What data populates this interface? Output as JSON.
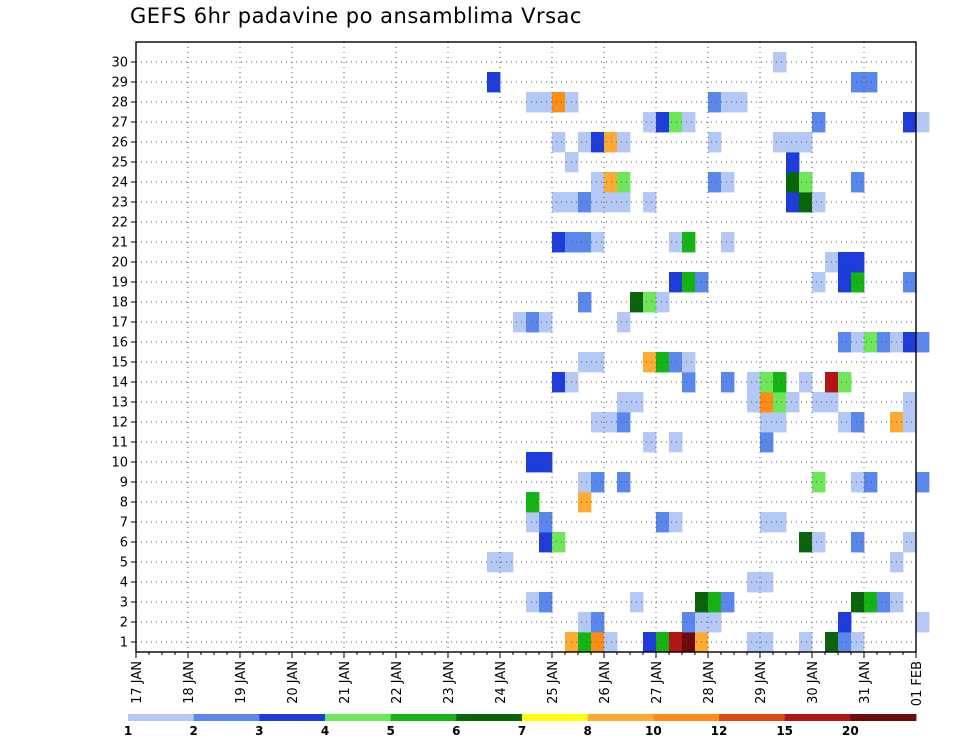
{
  "chart_data": {
    "type": "heatmap",
    "title": "GEFS 6hr padavine po ansamblima Vrsac",
    "members": [
      1,
      2,
      3,
      4,
      5,
      6,
      7,
      8,
      9,
      10,
      11,
      12,
      13,
      14,
      15,
      16,
      17,
      18,
      19,
      20,
      21,
      22,
      23,
      24,
      25,
      26,
      27,
      28,
      29,
      30
    ],
    "x_ticks": [
      "17 JAN",
      "18 JAN",
      "19 JAN",
      "20 JAN",
      "21 JAN",
      "22 JAN",
      "23 JAN",
      "24 JAN",
      "25 JAN",
      "26 JAN",
      "27 JAN",
      "28 JAN",
      "29 JAN",
      "30 JAN",
      "31 JAN",
      "01 FEB"
    ],
    "x_steps_per_day": 4,
    "grid": true,
    "legend": {
      "placement": "bottom",
      "labels": [
        "1",
        "2",
        "3",
        "4",
        "5",
        "6",
        "7",
        "8",
        "10",
        "12",
        "15",
        "20"
      ],
      "colors": [
        "#b4c8f5",
        "#5a87eb",
        "#1e3cdc",
        "#6ee65a",
        "#14b414",
        "#0a640a",
        "#ffff00",
        "#ffaa32",
        "#ff8c14",
        "#e14614",
        "#b41414",
        "#6e0a0a"
      ]
    },
    "cells": [
      {
        "m": 1,
        "t": 33,
        "v": 9
      },
      {
        "m": 1,
        "t": 34,
        "v": 5
      },
      {
        "m": 1,
        "t": 35,
        "v": 10
      },
      {
        "m": 1,
        "t": 36,
        "v": 1
      },
      {
        "m": 1,
        "t": 39,
        "v": 3
      },
      {
        "m": 1,
        "t": 40,
        "v": 5
      },
      {
        "m": 1,
        "t": 41,
        "v": 15
      },
      {
        "m": 1,
        "t": 42,
        "v": 20
      },
      {
        "m": 1,
        "t": 43,
        "v": 8
      },
      {
        "m": 1,
        "t": 47,
        "v": 1
      },
      {
        "m": 1,
        "t": 48,
        "v": 1
      },
      {
        "m": 1,
        "t": 51,
        "v": 1
      },
      {
        "m": 1,
        "t": 53,
        "v": 6
      },
      {
        "m": 1,
        "t": 54,
        "v": 2
      },
      {
        "m": 1,
        "t": 55,
        "v": 1
      },
      {
        "m": 2,
        "t": 34,
        "v": 1
      },
      {
        "m": 2,
        "t": 35,
        "v": 2
      },
      {
        "m": 2,
        "t": 42,
        "v": 2
      },
      {
        "m": 2,
        "t": 43,
        "v": 1
      },
      {
        "m": 2,
        "t": 44,
        "v": 1
      },
      {
        "m": 2,
        "t": 54,
        "v": 3
      },
      {
        "m": 2,
        "t": 60,
        "v": 1
      },
      {
        "m": 3,
        "t": 30,
        "v": 1
      },
      {
        "m": 3,
        "t": 31,
        "v": 2
      },
      {
        "m": 3,
        "t": 38,
        "v": 1
      },
      {
        "m": 3,
        "t": 43,
        "v": 6
      },
      {
        "m": 3,
        "t": 44,
        "v": 5
      },
      {
        "m": 3,
        "t": 45,
        "v": 2
      },
      {
        "m": 3,
        "t": 55,
        "v": 6
      },
      {
        "m": 3,
        "t": 56,
        "v": 5
      },
      {
        "m": 3,
        "t": 57,
        "v": 2
      },
      {
        "m": 3,
        "t": 58,
        "v": 1
      },
      {
        "m": 4,
        "t": 47,
        "v": 1
      },
      {
        "m": 4,
        "t": 48,
        "v": 1
      },
      {
        "m": 5,
        "t": 27,
        "v": 1
      },
      {
        "m": 5,
        "t": 28,
        "v": 1
      },
      {
        "m": 5,
        "t": 58,
        "v": 1
      },
      {
        "m": 6,
        "t": 31,
        "v": 3
      },
      {
        "m": 6,
        "t": 32,
        "v": 4
      },
      {
        "m": 6,
        "t": 51,
        "v": 6
      },
      {
        "m": 6,
        "t": 52,
        "v": 1
      },
      {
        "m": 6,
        "t": 55,
        "v": 2
      },
      {
        "m": 6,
        "t": 59,
        "v": 1
      },
      {
        "m": 7,
        "t": 30,
        "v": 1
      },
      {
        "m": 7,
        "t": 31,
        "v": 2
      },
      {
        "m": 7,
        "t": 40,
        "v": 2
      },
      {
        "m": 7,
        "t": 41,
        "v": 1
      },
      {
        "m": 7,
        "t": 48,
        "v": 1
      },
      {
        "m": 7,
        "t": 49,
        "v": 1
      },
      {
        "m": 8,
        "t": 30,
        "v": 5
      },
      {
        "m": 8,
        "t": 34,
        "v": 8
      },
      {
        "m": 9,
        "t": 34,
        "v": 1
      },
      {
        "m": 9,
        "t": 35,
        "v": 2
      },
      {
        "m": 9,
        "t": 37,
        "v": 2
      },
      {
        "m": 9,
        "t": 52,
        "v": 4
      },
      {
        "m": 9,
        "t": 55,
        "v": 1
      },
      {
        "m": 9,
        "t": 56,
        "v": 2
      },
      {
        "m": 9,
        "t": 60,
        "v": 2
      },
      {
        "m": 10,
        "t": 30,
        "v": 3
      },
      {
        "m": 10,
        "t": 31,
        "v": 3
      },
      {
        "m": 11,
        "t": 39,
        "v": 1
      },
      {
        "m": 11,
        "t": 41,
        "v": 1
      },
      {
        "m": 11,
        "t": 48,
        "v": 2
      },
      {
        "m": 12,
        "t": 35,
        "v": 1
      },
      {
        "m": 12,
        "t": 36,
        "v": 1
      },
      {
        "m": 12,
        "t": 37,
        "v": 2
      },
      {
        "m": 12,
        "t": 48,
        "v": 1
      },
      {
        "m": 12,
        "t": 49,
        "v": 1
      },
      {
        "m": 12,
        "t": 54,
        "v": 1
      },
      {
        "m": 12,
        "t": 55,
        "v": 2
      },
      {
        "m": 12,
        "t": 58,
        "v": 8
      },
      {
        "m": 12,
        "t": 59,
        "v": 1
      },
      {
        "m": 13,
        "t": 37,
        "v": 1
      },
      {
        "m": 13,
        "t": 38,
        "v": 1
      },
      {
        "m": 13,
        "t": 47,
        "v": 1
      },
      {
        "m": 13,
        "t": 48,
        "v": 10
      },
      {
        "m": 13,
        "t": 49,
        "v": 4
      },
      {
        "m": 13,
        "t": 50,
        "v": 1
      },
      {
        "m": 13,
        "t": 52,
        "v": 1
      },
      {
        "m": 13,
        "t": 53,
        "v": 1
      },
      {
        "m": 13,
        "t": 59,
        "v": 1
      },
      {
        "m": 14,
        "t": 32,
        "v": 3
      },
      {
        "m": 14,
        "t": 33,
        "v": 1
      },
      {
        "m": 14,
        "t": 42,
        "v": 2
      },
      {
        "m": 14,
        "t": 45,
        "v": 2
      },
      {
        "m": 14,
        "t": 47,
        "v": 1
      },
      {
        "m": 14,
        "t": 48,
        "v": 4
      },
      {
        "m": 14,
        "t": 49,
        "v": 5
      },
      {
        "m": 14,
        "t": 51,
        "v": 1
      },
      {
        "m": 14,
        "t": 53,
        "v": 15
      },
      {
        "m": 14,
        "t": 54,
        "v": 4
      },
      {
        "m": 15,
        "t": 34,
        "v": 1
      },
      {
        "m": 15,
        "t": 35,
        "v": 1
      },
      {
        "m": 15,
        "t": 39,
        "v": 8
      },
      {
        "m": 15,
        "t": 40,
        "v": 5
      },
      {
        "m": 15,
        "t": 41,
        "v": 2
      },
      {
        "m": 15,
        "t": 42,
        "v": 1
      },
      {
        "m": 16,
        "t": 54,
        "v": 2
      },
      {
        "m": 16,
        "t": 55,
        "v": 1
      },
      {
        "m": 16,
        "t": 56,
        "v": 4
      },
      {
        "m": 16,
        "t": 57,
        "v": 2
      },
      {
        "m": 16,
        "t": 58,
        "v": 1
      },
      {
        "m": 16,
        "t": 59,
        "v": 3
      },
      {
        "m": 16,
        "t": 60,
        "v": 2
      },
      {
        "m": 17,
        "t": 29,
        "v": 1
      },
      {
        "m": 17,
        "t": 30,
        "v": 2
      },
      {
        "m": 17,
        "t": 31,
        "v": 1
      },
      {
        "m": 17,
        "t": 37,
        "v": 1
      },
      {
        "m": 18,
        "t": 34,
        "v": 2
      },
      {
        "m": 18,
        "t": 38,
        "v": 6
      },
      {
        "m": 18,
        "t": 39,
        "v": 4
      },
      {
        "m": 18,
        "t": 40,
        "v": 1
      },
      {
        "m": 19,
        "t": 41,
        "v": 3
      },
      {
        "m": 19,
        "t": 42,
        "v": 5
      },
      {
        "m": 19,
        "t": 43,
        "v": 2
      },
      {
        "m": 19,
        "t": 52,
        "v": 1
      },
      {
        "m": 19,
        "t": 54,
        "v": 3
      },
      {
        "m": 19,
        "t": 55,
        "v": 5
      },
      {
        "m": 19,
        "t": 59,
        "v": 2
      },
      {
        "m": 20,
        "t": 53,
        "v": 1
      },
      {
        "m": 20,
        "t": 54,
        "v": 3
      },
      {
        "m": 20,
        "t": 55,
        "v": 3
      },
      {
        "m": 21,
        "t": 32,
        "v": 3
      },
      {
        "m": 21,
        "t": 33,
        "v": 2
      },
      {
        "m": 21,
        "t": 34,
        "v": 2
      },
      {
        "m": 21,
        "t": 35,
        "v": 1
      },
      {
        "m": 21,
        "t": 41,
        "v": 1
      },
      {
        "m": 21,
        "t": 42,
        "v": 5
      },
      {
        "m": 21,
        "t": 45,
        "v": 1
      },
      {
        "m": 23,
        "t": 32,
        "v": 1
      },
      {
        "m": 23,
        "t": 33,
        "v": 1
      },
      {
        "m": 23,
        "t": 34,
        "v": 2
      },
      {
        "m": 23,
        "t": 35,
        "v": 1
      },
      {
        "m": 23,
        "t": 36,
        "v": 1
      },
      {
        "m": 23,
        "t": 37,
        "v": 1
      },
      {
        "m": 23,
        "t": 39,
        "v": 1
      },
      {
        "m": 23,
        "t": 50,
        "v": 3
      },
      {
        "m": 23,
        "t": 51,
        "v": 6
      },
      {
        "m": 23,
        "t": 52,
        "v": 1
      },
      {
        "m": 24,
        "t": 35,
        "v": 1
      },
      {
        "m": 24,
        "t": 36,
        "v": 8
      },
      {
        "m": 24,
        "t": 37,
        "v": 4
      },
      {
        "m": 24,
        "t": 44,
        "v": 2
      },
      {
        "m": 24,
        "t": 45,
        "v": 1
      },
      {
        "m": 24,
        "t": 50,
        "v": 6
      },
      {
        "m": 24,
        "t": 51,
        "v": 4
      },
      {
        "m": 24,
        "t": 55,
        "v": 2
      },
      {
        "m": 25,
        "t": 33,
        "v": 1
      },
      {
        "m": 25,
        "t": 50,
        "v": 3
      },
      {
        "m": 26,
        "t": 32,
        "v": 1
      },
      {
        "m": 26,
        "t": 34,
        "v": 1
      },
      {
        "m": 26,
        "t": 35,
        "v": 3
      },
      {
        "m": 26,
        "t": 36,
        "v": 8
      },
      {
        "m": 26,
        "t": 37,
        "v": 1
      },
      {
        "m": 26,
        "t": 44,
        "v": 1
      },
      {
        "m": 26,
        "t": 49,
        "v": 1
      },
      {
        "m": 26,
        "t": 50,
        "v": 1
      },
      {
        "m": 26,
        "t": 51,
        "v": 1
      },
      {
        "m": 27,
        "t": 39,
        "v": 1
      },
      {
        "m": 27,
        "t": 40,
        "v": 3
      },
      {
        "m": 27,
        "t": 41,
        "v": 4
      },
      {
        "m": 27,
        "t": 42,
        "v": 1
      },
      {
        "m": 27,
        "t": 52,
        "v": 2
      },
      {
        "m": 27,
        "t": 59,
        "v": 3
      },
      {
        "m": 27,
        "t": 60,
        "v": 1
      },
      {
        "m": 28,
        "t": 30,
        "v": 1
      },
      {
        "m": 28,
        "t": 31,
        "v": 1
      },
      {
        "m": 28,
        "t": 32,
        "v": 10
      },
      {
        "m": 28,
        "t": 33,
        "v": 1
      },
      {
        "m": 28,
        "t": 44,
        "v": 2
      },
      {
        "m": 28,
        "t": 45,
        "v": 1
      },
      {
        "m": 28,
        "t": 46,
        "v": 1
      },
      {
        "m": 29,
        "t": 27,
        "v": 3
      },
      {
        "m": 29,
        "t": 55,
        "v": 2
      },
      {
        "m": 29,
        "t": 56,
        "v": 2
      },
      {
        "m": 30,
        "t": 49,
        "v": 1
      }
    ]
  }
}
